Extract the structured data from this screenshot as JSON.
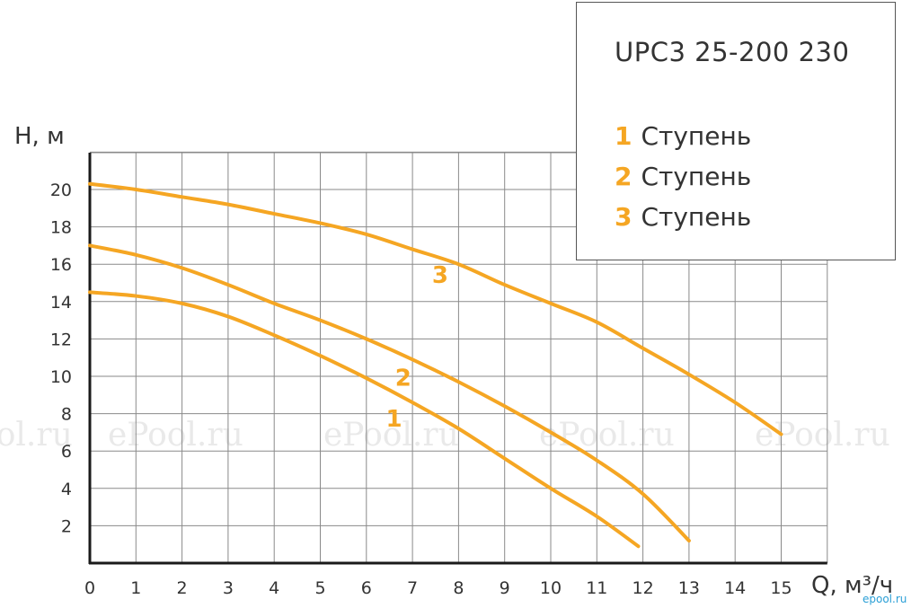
{
  "chart_data": {
    "type": "line",
    "title": "UPC3 25-200 230",
    "xlabel": "Q, м³/ч",
    "ylabel": "H, м",
    "xlim": [
      0,
      16
    ],
    "ylim": [
      0,
      22
    ],
    "x_ticks": [
      0,
      1,
      2,
      3,
      4,
      5,
      6,
      7,
      8,
      9,
      10,
      11,
      12,
      13,
      14,
      15
    ],
    "y_ticks": [
      2,
      4,
      6,
      8,
      10,
      12,
      14,
      16,
      18,
      20
    ],
    "grid": true,
    "legend_position": "top-right",
    "line_color": "#f5a623",
    "series": [
      {
        "name": "1",
        "label": "Ступень",
        "curve_label": "1",
        "label_at": [
          6.6,
          7.3
        ],
        "points": [
          [
            0,
            14.5
          ],
          [
            1,
            14.3
          ],
          [
            2,
            13.9
          ],
          [
            3,
            13.2
          ],
          [
            4,
            12.2
          ],
          [
            5,
            11.1
          ],
          [
            6,
            9.9
          ],
          [
            7,
            8.6
          ],
          [
            8,
            7.2
          ],
          [
            9,
            5.6
          ],
          [
            10,
            4.0
          ],
          [
            11,
            2.5
          ],
          [
            11.9,
            0.9
          ]
        ]
      },
      {
        "name": "2",
        "label": "Ступень",
        "curve_label": "2",
        "label_at": [
          6.8,
          9.5
        ],
        "points": [
          [
            0,
            17.0
          ],
          [
            1,
            16.5
          ],
          [
            2,
            15.8
          ],
          [
            3,
            14.9
          ],
          [
            4,
            13.9
          ],
          [
            5,
            13.0
          ],
          [
            6,
            12.0
          ],
          [
            7,
            10.9
          ],
          [
            8,
            9.7
          ],
          [
            9,
            8.4
          ],
          [
            10,
            7.0
          ],
          [
            11,
            5.5
          ],
          [
            12,
            3.7
          ],
          [
            13,
            1.2
          ]
        ]
      },
      {
        "name": "3",
        "label": "Ступень",
        "curve_label": "3",
        "label_at": [
          7.6,
          15.0
        ],
        "points": [
          [
            0,
            20.3
          ],
          [
            1,
            20.0
          ],
          [
            2,
            19.6
          ],
          [
            3,
            19.2
          ],
          [
            4,
            18.7
          ],
          [
            5,
            18.2
          ],
          [
            6,
            17.6
          ],
          [
            7,
            16.8
          ],
          [
            8,
            16.0
          ],
          [
            9,
            14.9
          ],
          [
            10,
            13.9
          ],
          [
            11,
            12.9
          ],
          [
            12,
            11.5
          ],
          [
            13,
            10.1
          ],
          [
            14,
            8.6
          ],
          [
            15,
            6.9
          ]
        ]
      }
    ]
  },
  "watermarks": [
    "ePool.ru",
    "ePool.ru",
    "ePool.ru",
    "ePool.ru",
    "ePool.ru"
  ],
  "corner_watermark": "epool.ru",
  "colors": {
    "curve": "#f5a623",
    "grid": "#8a8a8a",
    "axis": "#1a1a1a",
    "label_text": "#333333"
  }
}
